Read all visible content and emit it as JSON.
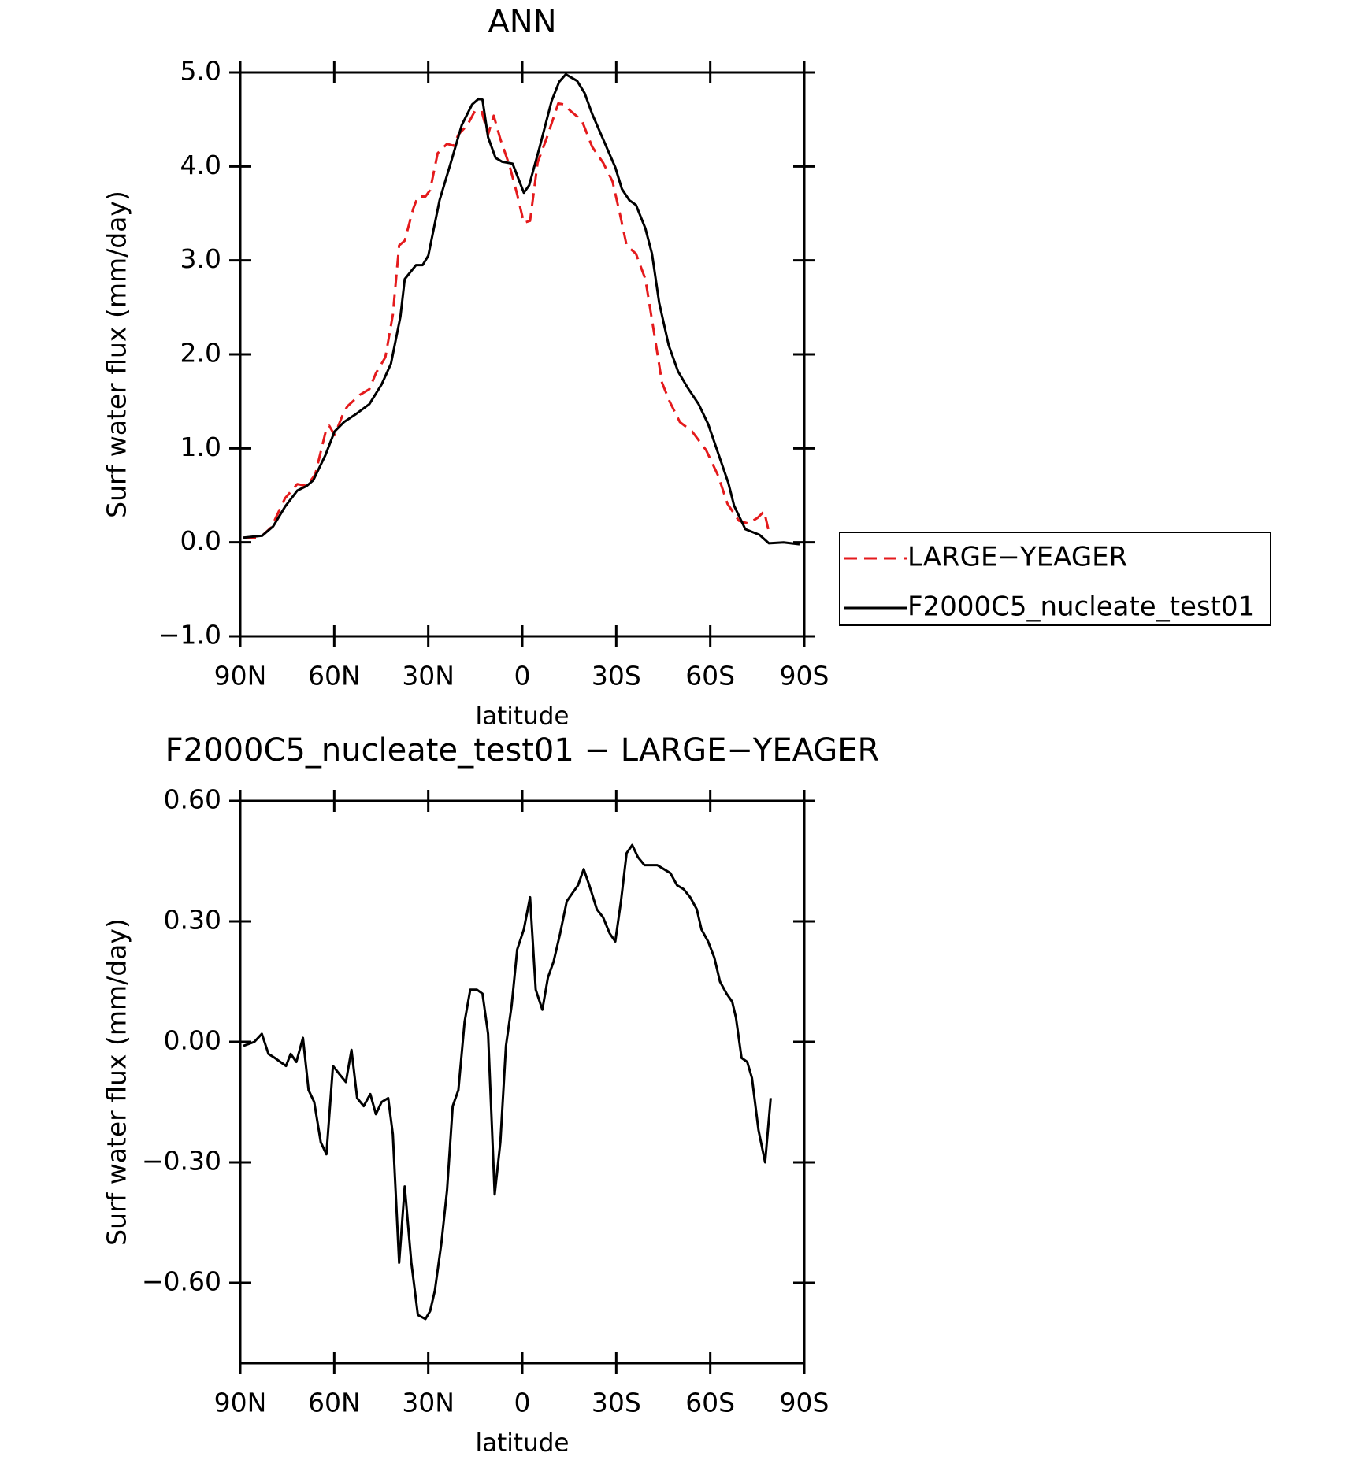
{
  "chart_data": [
    {
      "type": "line",
      "title": "ANN",
      "xlabel": "latitude",
      "ylabel": "Surf water flux (mm/day)",
      "xlim": [
        90,
        -90
      ],
      "ylim": [
        -1,
        5
      ],
      "xticks": [
        {
          "value": 90,
          "label": "90N"
        },
        {
          "value": 60,
          "label": "60N"
        },
        {
          "value": 30,
          "label": "30N"
        },
        0,
        {
          "value": -30,
          "label": "30S"
        },
        {
          "value": -60,
          "label": "60S"
        },
        {
          "value": -90,
          "label": "90S"
        }
      ],
      "yticks": [
        {
          "value": -1,
          "label": "−1.0"
        },
        {
          "value": 0,
          "label": "0.0"
        },
        {
          "value": 1,
          "label": "1.0"
        },
        {
          "value": 2,
          "label": "2.0"
        },
        {
          "value": 3,
          "label": "3.0"
        },
        {
          "value": 4,
          "label": "4.0"
        },
        {
          "value": 5,
          "label": "5.0"
        }
      ],
      "legend": "right",
      "series": [
        {
          "name": "LARGE−YEAGER",
          "color": "#e41a1c",
          "style": "dashed",
          "x": [
            89,
            83.7,
            80.1,
            75.7,
            71.8,
            68.8,
            66.1,
            62.8,
            61.6,
            59.9,
            56.9,
            55.7,
            51.8,
            48.8,
            46.7,
            43.7,
            41.3,
            39.3,
            37.5,
            34.8,
            33.3,
            30.9,
            29.4,
            27,
            24,
            21.9,
            20.4,
            17.5,
            15.1,
            13,
            10.9,
            9.1,
            7,
            4,
            1.6,
            -0.5,
            -2.5,
            -4.9,
            -7.9,
            -11.5,
            -13.3,
            -15.4,
            -19,
            -22.3,
            -25.8,
            -28.8,
            -31.2,
            -33.3,
            -36.3,
            -39.3,
            -42.2,
            -44.6,
            -47,
            -50.3,
            -54.2,
            -58.7,
            -62.5,
            -65.5,
            -69.1,
            -72.1,
            -75.1,
            -77.2,
            -78.7
          ],
          "values": [
            0.05,
            0.05,
            0.16,
            0.47,
            0.62,
            0.6,
            0.72,
            1.17,
            1.24,
            1.14,
            1.39,
            1.45,
            1.57,
            1.63,
            1.8,
            1.97,
            2.42,
            3.16,
            3.21,
            3.55,
            3.68,
            3.68,
            3.75,
            4.14,
            4.24,
            4.22,
            4.34,
            4.44,
            4.59,
            4.59,
            4.34,
            4.54,
            4.29,
            4.0,
            3.7,
            3.4,
            3.42,
            4.04,
            4.31,
            4.67,
            4.66,
            4.59,
            4.49,
            4.21,
            4.04,
            3.84,
            3.49,
            3.16,
            3.07,
            2.8,
            2.2,
            1.7,
            1.5,
            1.28,
            1.18,
            0.98,
            0.71,
            0.41,
            0.23,
            0.2,
            0.26,
            0.33,
            0.11
          ]
        },
        {
          "name": "F2000C5_nucleate_test01",
          "color": "#000000",
          "style": "solid",
          "x": [
            89,
            83,
            79.5,
            75.7,
            71.8,
            68.8,
            66.7,
            62.8,
            59.9,
            56.9,
            53.3,
            48.8,
            44.9,
            41.9,
            38.9,
            37.5,
            33.9,
            31.8,
            30,
            26.4,
            22.8,
            19.3,
            16,
            13.9,
            12.7,
            10.9,
            8.5,
            6.4,
            3.1,
            -0.5,
            -2.2,
            -5.5,
            -9.4,
            -11.8,
            -13.9,
            -17.5,
            -19.9,
            -22.3,
            -25.8,
            -29.7,
            -31.8,
            -34.2,
            -36.3,
            -39.3,
            -41.4,
            -43.7,
            -46.7,
            -49.7,
            -52.7,
            -56.3,
            -59.3,
            -62.2,
            -65.8,
            -67.6,
            -71.2,
            -75.7,
            -78.7,
            -83.4,
            -88.5
          ],
          "values": [
            0.05,
            0.07,
            0.17,
            0.38,
            0.55,
            0.6,
            0.66,
            0.93,
            1.18,
            1.28,
            1.36,
            1.47,
            1.68,
            1.9,
            2.4,
            2.8,
            2.95,
            2.95,
            3.05,
            3.64,
            4.04,
            4.44,
            4.66,
            4.72,
            4.71,
            4.31,
            4.09,
            4.05,
            4.03,
            3.72,
            3.8,
            4.2,
            4.7,
            4.9,
            4.98,
            4.91,
            4.78,
            4.56,
            4.29,
            3.99,
            3.76,
            3.64,
            3.59,
            3.34,
            3.07,
            2.55,
            2.1,
            1.82,
            1.65,
            1.47,
            1.26,
            0.98,
            0.63,
            0.39,
            0.14,
            0.08,
            -0.01,
            0.0,
            -0.02
          ]
        }
      ]
    },
    {
      "type": "line",
      "title": "F2000C5_nucleate_test01 − LARGE−YEAGER",
      "xlabel": "latitude",
      "ylabel": "Surf water flux (mm/day)",
      "xlim": [
        90,
        -90
      ],
      "ylim": [
        -0.8,
        0.6
      ],
      "xticks": [
        {
          "value": 90,
          "label": "90N"
        },
        {
          "value": 60,
          "label": "60N"
        },
        {
          "value": 30,
          "label": "30N"
        },
        0,
        {
          "value": -30,
          "label": "30S"
        },
        {
          "value": -60,
          "label": "60S"
        },
        {
          "value": -90,
          "label": "90S"
        }
      ],
      "yticks": [
        {
          "value": -0.6,
          "label": "−0.60"
        },
        {
          "value": -0.3,
          "label": "−0.30"
        },
        {
          "value": 0,
          "label": "0.00"
        },
        {
          "value": 0.3,
          "label": "0.30"
        },
        {
          "value": 0.6,
          "label": "0.60"
        }
      ],
      "series": [
        {
          "color": "#000000",
          "style": "solid",
          "x": [
            89,
            85.5,
            83.1,
            81,
            79,
            77.2,
            75.4,
            73.9,
            72.1,
            70,
            68.2,
            66.4,
            64.3,
            62.5,
            60.4,
            58.4,
            56.3,
            54.5,
            52.7,
            50.6,
            48.5,
            46.7,
            44.9,
            42.8,
            41.3,
            39.3,
            37.5,
            35.4,
            33.3,
            30.9,
            29.4,
            27.9,
            25.8,
            24,
            22.2,
            20.4,
            18.4,
            16.6,
            14.5,
            12.7,
            10.9,
            8.8,
            7,
            5.2,
            3.4,
            1.6,
            -0.5,
            -2.5,
            -4.3,
            -6.4,
            -8.2,
            -10,
            -12.1,
            -14.2,
            -16,
            -17.8,
            -19.6,
            -21.4,
            -23.8,
            -25.8,
            -27.9,
            -29.7,
            -31.5,
            -33.3,
            -35.1,
            -36.9,
            -39,
            -41.1,
            -43.1,
            -45.2,
            -47.3,
            -49.4,
            -51.5,
            -53.6,
            -55.7,
            -57.2,
            -59.3,
            -61.3,
            -63.1,
            -65.2,
            -67,
            -68.2,
            -70,
            -71.8,
            -73.3,
            -75.4,
            -77.5,
            -79.3
          ],
          "values": [
            -0.01,
            0.0,
            0.02,
            -0.03,
            -0.04,
            -0.05,
            -0.06,
            -0.03,
            -0.05,
            0.01,
            -0.12,
            -0.15,
            -0.25,
            -0.28,
            -0.06,
            -0.08,
            -0.1,
            -0.02,
            -0.14,
            -0.16,
            -0.13,
            -0.18,
            -0.15,
            -0.14,
            -0.23,
            -0.55,
            -0.36,
            -0.55,
            -0.68,
            -0.69,
            -0.67,
            -0.62,
            -0.5,
            -0.37,
            -0.16,
            -0.12,
            0.05,
            0.13,
            0.13,
            0.12,
            0.02,
            -0.38,
            -0.25,
            -0.01,
            0.09,
            0.23,
            0.28,
            0.36,
            0.13,
            0.08,
            0.16,
            0.2,
            0.27,
            0.35,
            0.37,
            0.39,
            0.43,
            0.39,
            0.33,
            0.31,
            0.27,
            0.25,
            0.35,
            0.47,
            0.49,
            0.46,
            0.44,
            0.44,
            0.44,
            0.43,
            0.42,
            0.39,
            0.38,
            0.36,
            0.33,
            0.28,
            0.25,
            0.21,
            0.15,
            0.12,
            0.1,
            0.06,
            -0.04,
            -0.05,
            -0.09,
            -0.22,
            -0.3,
            -0.14
          ]
        }
      ]
    }
  ]
}
